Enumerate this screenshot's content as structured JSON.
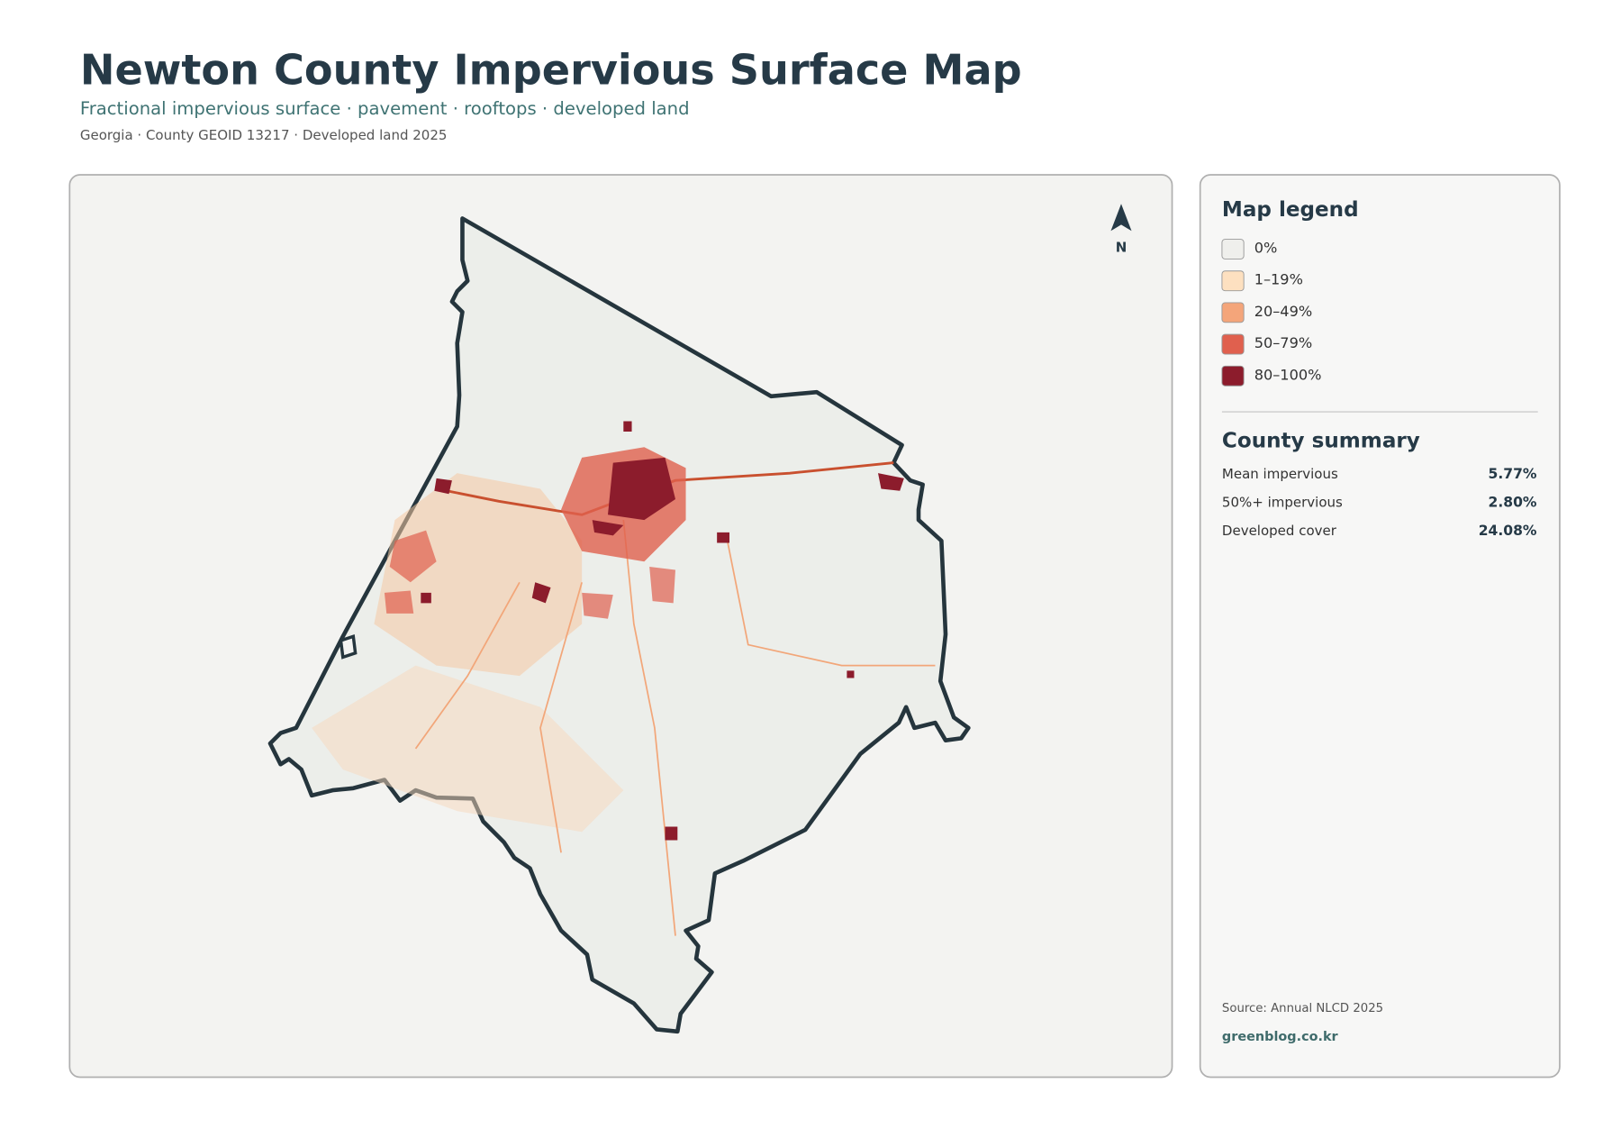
{
  "header": {
    "title": "Newton County Impervious Surface Map",
    "subtitle": "Fractional impervious surface · pavement · rooftops · developed land",
    "meta": "Georgia · County GEOID 13217 · Developed land 2025"
  },
  "map": {
    "north": "N"
  },
  "legend": {
    "title": "Map legend",
    "items": [
      {
        "label": "0%",
        "color": "#efefec"
      },
      {
        "label": "1–19%",
        "color": "#fde0c0"
      },
      {
        "label": "20–49%",
        "color": "#f4a57a"
      },
      {
        "label": "50–79%",
        "color": "#e0604e"
      },
      {
        "label": "80–100%",
        "color": "#8c1c2c"
      }
    ]
  },
  "summary": {
    "title": "County summary",
    "rows": [
      {
        "label": "Mean impervious",
        "value": "5.77%"
      },
      {
        "label": "50%+ impervious",
        "value": "2.80%"
      },
      {
        "label": "Developed cover",
        "value": "24.08%"
      }
    ]
  },
  "footer": {
    "source": "Source: Annual NLCD 2025",
    "site": "greenblog.co.kr"
  }
}
